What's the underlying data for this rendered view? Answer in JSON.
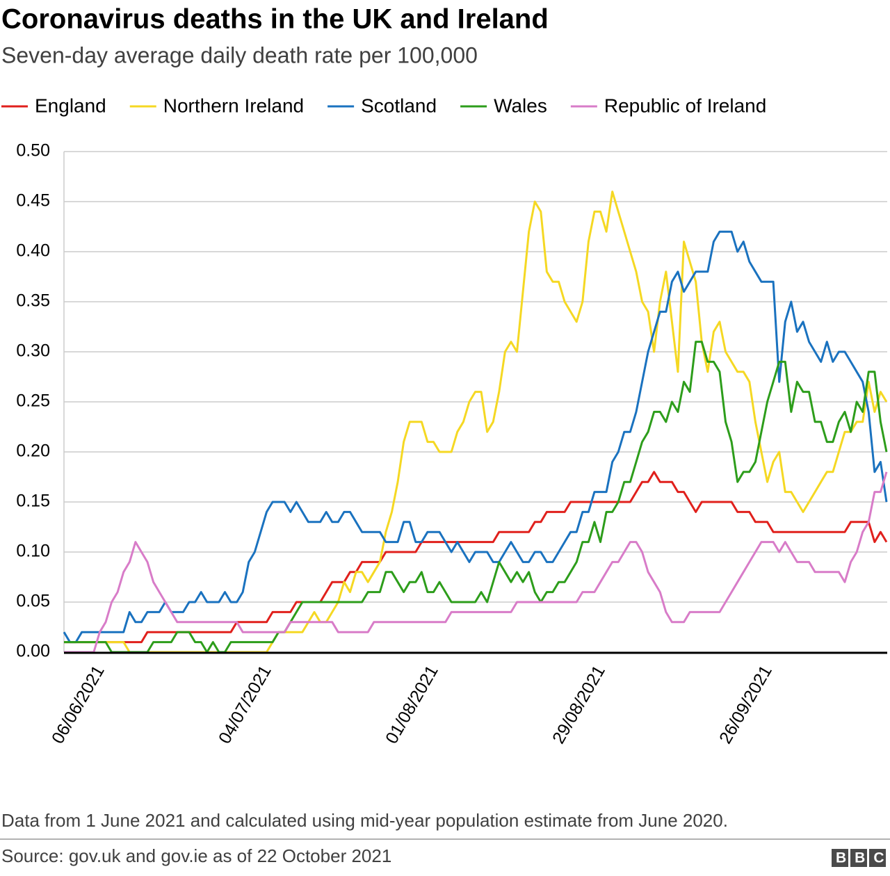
{
  "chart_data": {
    "type": "line",
    "title": "Coronavirus deaths in the UK and Ireland",
    "subtitle": "Seven-day average daily death rate per 100,000",
    "note": "Data from 1 June 2021 and calculated using mid-year population estimate from June 2020.",
    "source": "Source: gov.uk and gov.ie as of 22 October 2021",
    "logo": "BBC",
    "categories": [
      null,
      null,
      null,
      null,
      null,
      "06/06/2021",
      null,
      null,
      null,
      null,
      null,
      null,
      null,
      null,
      null,
      null,
      null,
      null,
      null,
      null,
      null,
      null,
      null,
      null,
      null,
      null,
      null,
      null,
      null,
      null,
      null,
      null,
      null,
      "04/07/2021",
      null,
      null,
      null,
      null,
      null,
      null,
      null,
      null,
      null,
      null,
      null,
      null,
      null,
      null,
      null,
      null,
      null,
      null,
      null,
      null,
      null,
      null,
      null,
      null,
      null,
      null,
      null,
      "01/08/2021",
      null,
      null,
      null,
      null,
      null,
      null,
      null,
      null,
      null,
      null,
      null,
      null,
      null,
      null,
      null,
      null,
      null,
      null,
      null,
      null,
      null,
      null,
      null,
      null,
      null,
      null,
      null,
      "29/08/2021",
      null,
      null,
      null,
      null,
      null,
      null,
      null,
      null,
      null,
      null,
      null,
      null,
      null,
      null,
      null,
      null,
      null,
      null,
      null,
      null,
      null,
      null,
      null,
      null,
      null,
      null,
      null,
      "26/09/2021",
      null,
      null,
      null,
      null,
      null,
      null,
      null,
      null,
      null,
      null,
      null,
      null,
      null,
      null,
      null,
      null,
      null,
      null,
      null,
      null,
      null
    ],
    "series": [
      {
        "name": "England",
        "color": "#e0201c",
        "values": [
          0.01,
          0.01,
          0.01,
          0.01,
          0.01,
          0.01,
          0.01,
          0.01,
          0.01,
          0.01,
          0.01,
          0.01,
          0.01,
          0.01,
          0.02,
          0.02,
          0.02,
          0.02,
          0.02,
          0.02,
          0.02,
          0.02,
          0.02,
          0.02,
          0.02,
          0.02,
          0.02,
          0.02,
          0.02,
          0.03,
          0.03,
          0.03,
          0.03,
          0.03,
          0.03,
          0.04,
          0.04,
          0.04,
          0.04,
          0.05,
          0.05,
          0.05,
          0.05,
          0.05,
          0.06,
          0.07,
          0.07,
          0.07,
          0.08,
          0.08,
          0.09,
          0.09,
          0.09,
          0.09,
          0.1,
          0.1,
          0.1,
          0.1,
          0.1,
          0.1,
          0.11,
          0.11,
          0.11,
          0.11,
          0.11,
          0.11,
          0.11,
          0.11,
          0.11,
          0.11,
          0.11,
          0.11,
          0.11,
          0.12,
          0.12,
          0.12,
          0.12,
          0.12,
          0.12,
          0.13,
          0.13,
          0.14,
          0.14,
          0.14,
          0.14,
          0.15,
          0.15,
          0.15,
          0.15,
          0.15,
          0.15,
          0.15,
          0.15,
          0.15,
          0.15,
          0.15,
          0.16,
          0.17,
          0.17,
          0.18,
          0.17,
          0.17,
          0.17,
          0.16,
          0.16,
          0.15,
          0.14,
          0.15,
          0.15,
          0.15,
          0.15,
          0.15,
          0.15,
          0.14,
          0.14,
          0.14,
          0.13,
          0.13,
          0.13,
          0.12,
          0.12,
          0.12,
          0.12,
          0.12,
          0.12,
          0.12,
          0.12,
          0.12,
          0.12,
          0.12,
          0.12,
          0.12,
          0.13,
          0.13,
          0.13,
          0.13,
          0.11,
          0.12,
          0.11
        ]
      },
      {
        "name": "Northern Ireland",
        "color": "#f5d823",
        "values": [
          0.01,
          0.01,
          0.01,
          0.01,
          0.01,
          0.01,
          0.01,
          0.01,
          0.01,
          0.01,
          0.01,
          0,
          0,
          0,
          0,
          0,
          0,
          0,
          0,
          0,
          0,
          0,
          0,
          0,
          0,
          0,
          0,
          0,
          0,
          0,
          0,
          0,
          0,
          0,
          0,
          0.01,
          0.02,
          0.02,
          0.02,
          0.02,
          0.02,
          0.03,
          0.04,
          0.03,
          0.03,
          0.04,
          0.05,
          0.07,
          0.06,
          0.08,
          0.08,
          0.07,
          0.08,
          0.09,
          0.12,
          0.14,
          0.17,
          0.21,
          0.23,
          0.23,
          0.23,
          0.21,
          0.21,
          0.2,
          0.2,
          0.2,
          0.22,
          0.23,
          0.25,
          0.26,
          0.26,
          0.22,
          0.23,
          0.26,
          0.3,
          0.31,
          0.3,
          0.36,
          0.42,
          0.45,
          0.44,
          0.38,
          0.37,
          0.37,
          0.35,
          0.34,
          0.33,
          0.35,
          0.41,
          0.44,
          0.44,
          0.42,
          0.46,
          0.44,
          0.42,
          0.4,
          0.38,
          0.35,
          0.34,
          0.3,
          0.35,
          0.38,
          0.33,
          0.28,
          0.41,
          0.39,
          0.37,
          0.31,
          0.28,
          0.32,
          0.33,
          0.3,
          0.29,
          0.28,
          0.28,
          0.27,
          0.23,
          0.2,
          0.17,
          0.19,
          0.2,
          0.16,
          0.16,
          0.15,
          0.14,
          0.15,
          0.16,
          0.17,
          0.18,
          0.18,
          0.2,
          0.22,
          0.22,
          0.23,
          0.23,
          0.27,
          0.24,
          0.26,
          0.25
        ]
      },
      {
        "name": "Scotland",
        "color": "#1a72bf",
        "values": [
          0.02,
          0.01,
          0.01,
          0.02,
          0.02,
          0.02,
          0.02,
          0.02,
          0.02,
          0.02,
          0.02,
          0.04,
          0.03,
          0.03,
          0.04,
          0.04,
          0.04,
          0.05,
          0.04,
          0.04,
          0.04,
          0.05,
          0.05,
          0.06,
          0.05,
          0.05,
          0.05,
          0.06,
          0.05,
          0.05,
          0.06,
          0.09,
          0.1,
          0.12,
          0.14,
          0.15,
          0.15,
          0.15,
          0.14,
          0.15,
          0.14,
          0.13,
          0.13,
          0.13,
          0.14,
          0.13,
          0.13,
          0.14,
          0.14,
          0.13,
          0.12,
          0.12,
          0.12,
          0.12,
          0.11,
          0.11,
          0.11,
          0.13,
          0.13,
          0.11,
          0.11,
          0.12,
          0.12,
          0.12,
          0.11,
          0.1,
          0.11,
          0.1,
          0.09,
          0.1,
          0.1,
          0.1,
          0.09,
          0.09,
          0.1,
          0.11,
          0.1,
          0.09,
          0.09,
          0.1,
          0.1,
          0.09,
          0.09,
          0.1,
          0.11,
          0.12,
          0.12,
          0.14,
          0.14,
          0.16,
          0.16,
          0.16,
          0.19,
          0.2,
          0.22,
          0.22,
          0.24,
          0.27,
          0.3,
          0.32,
          0.34,
          0.34,
          0.37,
          0.38,
          0.36,
          0.37,
          0.38,
          0.38,
          0.38,
          0.41,
          0.42,
          0.42,
          0.42,
          0.4,
          0.41,
          0.39,
          0.38,
          0.37,
          0.37,
          0.37,
          0.27,
          0.33,
          0.35,
          0.32,
          0.33,
          0.31,
          0.3,
          0.29,
          0.31,
          0.29,
          0.3,
          0.3,
          0.29,
          0.28,
          0.27,
          0.24,
          0.18,
          0.19,
          0.15
        ]
      },
      {
        "name": "Wales",
        "color": "#2d9d1b",
        "values": [
          0.01,
          0.01,
          0.01,
          0.01,
          0.01,
          0.01,
          0.01,
          0.01,
          0,
          0,
          0,
          0,
          0,
          0,
          0,
          0.01,
          0.01,
          0.01,
          0.01,
          0.02,
          0.02,
          0.02,
          0.01,
          0.01,
          0,
          0.01,
          0,
          0,
          0.01,
          0.01,
          0.01,
          0.01,
          0.01,
          0.01,
          0.01,
          0.01,
          0.02,
          0.02,
          0.03,
          0.04,
          0.05,
          0.05,
          0.05,
          0.05,
          0.05,
          0.05,
          0.05,
          0.05,
          0.05,
          0.05,
          0.05,
          0.06,
          0.06,
          0.06,
          0.08,
          0.08,
          0.07,
          0.06,
          0.07,
          0.07,
          0.08,
          0.06,
          0.06,
          0.07,
          0.06,
          0.05,
          0.05,
          0.05,
          0.05,
          0.05,
          0.06,
          0.05,
          0.07,
          0.09,
          0.08,
          0.07,
          0.08,
          0.07,
          0.08,
          0.06,
          0.05,
          0.06,
          0.06,
          0.07,
          0.07,
          0.08,
          0.09,
          0.11,
          0.11,
          0.13,
          0.11,
          0.14,
          0.14,
          0.15,
          0.17,
          0.17,
          0.19,
          0.21,
          0.22,
          0.24,
          0.24,
          0.23,
          0.25,
          0.24,
          0.27,
          0.26,
          0.31,
          0.31,
          0.29,
          0.29,
          0.28,
          0.23,
          0.21,
          0.17,
          0.18,
          0.18,
          0.19,
          0.22,
          0.25,
          0.27,
          0.29,
          0.29,
          0.24,
          0.27,
          0.26,
          0.26,
          0.23,
          0.23,
          0.21,
          0.21,
          0.23,
          0.24,
          0.22,
          0.25,
          0.24,
          0.28,
          0.28,
          0.23,
          0.2
        ]
      },
      {
        "name": "Republic of Ireland",
        "color": "#d87cc8",
        "values": [
          0,
          0,
          0,
          0,
          0,
          0,
          0.02,
          0.03,
          0.05,
          0.06,
          0.08,
          0.09,
          0.11,
          0.1,
          0.09,
          0.07,
          0.06,
          0.05,
          0.04,
          0.03,
          0.03,
          0.03,
          0.03,
          0.03,
          0.03,
          0.03,
          0.03,
          0.03,
          0.03,
          0.03,
          0.02,
          0.02,
          0.02,
          0.02,
          0.02,
          0.02,
          0.02,
          0.02,
          0.03,
          0.03,
          0.03,
          0.03,
          0.03,
          0.03,
          0.03,
          0.03,
          0.02,
          0.02,
          0.02,
          0.02,
          0.02,
          0.02,
          0.03,
          0.03,
          0.03,
          0.03,
          0.03,
          0.03,
          0.03,
          0.03,
          0.03,
          0.03,
          0.03,
          0.03,
          0.03,
          0.04,
          0.04,
          0.04,
          0.04,
          0.04,
          0.04,
          0.04,
          0.04,
          0.04,
          0.04,
          0.04,
          0.05,
          0.05,
          0.05,
          0.05,
          0.05,
          0.05,
          0.05,
          0.05,
          0.05,
          0.05,
          0.05,
          0.06,
          0.06,
          0.06,
          0.07,
          0.08,
          0.09,
          0.09,
          0.1,
          0.11,
          0.11,
          0.1,
          0.08,
          0.07,
          0.06,
          0.04,
          0.03,
          0.03,
          0.03,
          0.04,
          0.04,
          0.04,
          0.04,
          0.04,
          0.04,
          0.05,
          0.06,
          0.07,
          0.08,
          0.09,
          0.1,
          0.11,
          0.11,
          0.11,
          0.1,
          0.11,
          0.1,
          0.09,
          0.09,
          0.09,
          0.08,
          0.08,
          0.08,
          0.08,
          0.08,
          0.07,
          0.09,
          0.1,
          0.12,
          0.13,
          0.16,
          0.16,
          0.18
        ]
      }
    ],
    "ylim": [
      0,
      0.5
    ],
    "yticks": [
      {
        "value": 0,
        "label": "0.00"
      },
      {
        "value": 0.05,
        "label": "0.05"
      },
      {
        "value": 0.1,
        "label": "0.10"
      },
      {
        "value": 0.15,
        "label": "0.15"
      },
      {
        "value": 0.2,
        "label": "0.20"
      },
      {
        "value": 0.25,
        "label": "0.25"
      },
      {
        "value": 0.3,
        "label": "0.30"
      },
      {
        "value": 0.35,
        "label": "0.35"
      },
      {
        "value": 0.4,
        "label": "0.40"
      },
      {
        "value": 0.45,
        "label": "0.45"
      },
      {
        "value": 0.5,
        "label": "0.50"
      }
    ],
    "grid": true
  }
}
